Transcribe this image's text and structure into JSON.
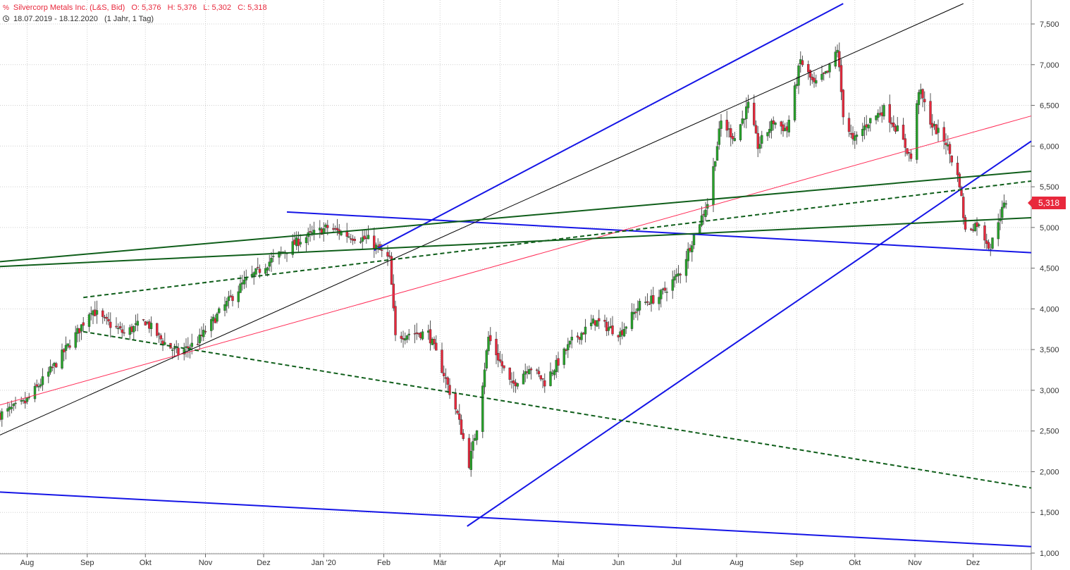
{
  "header": {
    "instrument": "Silvercorp Metals Inc. (L&S, Bid)",
    "open": "O: 5,376",
    "high": "H: 5,376",
    "low": "L: 5,302",
    "close": "C: 5,318",
    "range": "18.07.2019 - 18.12.2020",
    "period": "(1 Jahr, 1 Tag)"
  },
  "last_price_label": "5,318",
  "colors": {
    "up": "#27a32a",
    "down": "#e8283c",
    "blue_line": "#1515e6",
    "green_line": "#0f5e1a",
    "red_line": "#ff2a55",
    "black_line": "#000000",
    "grid": "#cfcfcf"
  },
  "chart_data": {
    "type": "candlestick",
    "x_range": [
      "2019-07-18",
      "2020-12-18"
    ],
    "ylim": [
      1.0,
      7.75
    ],
    "y_ticks": [
      "1,000",
      "1,500",
      "2,000",
      "2,500",
      "3,000",
      "3,500",
      "4,000",
      "4,500",
      "5,000",
      "5,500",
      "6,000",
      "6,500",
      "7,000",
      "7,500"
    ],
    "month_labels": [
      "Aug",
      "Sep",
      "Okt",
      "Nov",
      "Dez",
      "Jan '20",
      "Feb",
      "Mär",
      "Apr",
      "Mai",
      "Jun",
      "Jul",
      "Aug",
      "Sep",
      "Okt",
      "Nov",
      "Dez"
    ],
    "month_starts": [
      "2019-08-01",
      "2019-09-01",
      "2019-10-01",
      "2019-11-01",
      "2019-12-01",
      "2020-01-01",
      "2020-02-01",
      "2020-03-01",
      "2020-04-01",
      "2020-05-01",
      "2020-06-01",
      "2020-07-01",
      "2020-08-01",
      "2020-09-01",
      "2020-10-01",
      "2020-11-01",
      "2020-12-01"
    ],
    "price_path": [
      [
        "2019-07-18",
        2.7
      ],
      [
        "2019-07-31",
        2.85
      ],
      [
        "2019-08-15",
        3.3
      ],
      [
        "2019-08-28",
        3.75
      ],
      [
        "2019-09-03",
        4.0
      ],
      [
        "2019-09-10",
        3.85
      ],
      [
        "2019-09-20",
        3.7
      ],
      [
        "2019-10-01",
        3.85
      ],
      [
        "2019-10-10",
        3.6
      ],
      [
        "2019-10-18",
        3.45
      ],
      [
        "2019-10-28",
        3.6
      ],
      [
        "2019-11-08",
        3.95
      ],
      [
        "2019-11-20",
        4.3
      ],
      [
        "2019-12-05",
        4.6
      ],
      [
        "2019-12-20",
        4.85
      ],
      [
        "2020-01-03",
        5.0
      ],
      [
        "2020-01-14",
        4.9
      ],
      [
        "2020-01-24",
        4.85
      ],
      [
        "2020-02-04",
        4.6
      ],
      [
        "2020-02-07",
        3.65
      ],
      [
        "2020-02-14",
        3.7
      ],
      [
        "2020-02-24",
        3.7
      ],
      [
        "2020-03-03",
        3.2
      ],
      [
        "2020-03-10",
        2.7
      ],
      [
        "2020-03-16",
        2.1
      ],
      [
        "2020-03-20",
        2.55
      ],
      [
        "2020-03-26",
        3.65
      ],
      [
        "2020-04-07",
        3.05
      ],
      [
        "2020-04-16",
        3.3
      ],
      [
        "2020-04-24",
        3.1
      ],
      [
        "2020-05-08",
        3.6
      ],
      [
        "2020-05-20",
        3.85
      ],
      [
        "2020-06-02",
        3.7
      ],
      [
        "2020-06-12",
        4.05
      ],
      [
        "2020-06-22",
        4.15
      ],
      [
        "2020-07-03",
        4.45
      ],
      [
        "2020-07-10",
        4.9
      ],
      [
        "2020-07-17",
        5.3
      ],
      [
        "2020-07-24",
        6.3
      ],
      [
        "2020-07-31",
        6.1
      ],
      [
        "2020-08-07",
        6.5
      ],
      [
        "2020-08-12",
        6.0
      ],
      [
        "2020-08-20",
        6.3
      ],
      [
        "2020-08-27",
        6.2
      ],
      [
        "2020-09-03",
        7.05
      ],
      [
        "2020-09-10",
        6.75
      ],
      [
        "2020-09-17",
        6.9
      ],
      [
        "2020-09-22",
        7.2
      ],
      [
        "2020-09-25",
        6.4
      ],
      [
        "2020-09-30",
        6.05
      ],
      [
        "2020-10-08",
        6.3
      ],
      [
        "2020-10-16",
        6.45
      ],
      [
        "2020-10-23",
        6.2
      ],
      [
        "2020-10-30",
        5.85
      ],
      [
        "2020-11-03",
        6.7
      ],
      [
        "2020-11-10",
        6.25
      ],
      [
        "2020-11-17",
        6.05
      ],
      [
        "2020-11-24",
        5.55
      ],
      [
        "2020-11-27",
        4.95
      ],
      [
        "2020-12-03",
        5.05
      ],
      [
        "2020-12-10",
        4.75
      ],
      [
        "2020-12-14",
        5.1
      ],
      [
        "2020-12-18",
        5.318
      ]
    ],
    "last_close": 5.318,
    "trend_lines": [
      {
        "color": "blue",
        "style": "solid",
        "from": [
          "2020-01-27",
          4.72
        ],
        "to": [
          "2020-09-25",
          7.75
        ]
      },
      {
        "color": "blue",
        "style": "solid",
        "from": [
          "2020-03-15",
          1.33
        ],
        "to": [
          "2020-12-31",
          6.06
        ]
      },
      {
        "color": "blue",
        "style": "solid",
        "from": [
          "2019-12-13",
          5.19
        ],
        "to": [
          "2020-12-31",
          4.69
        ]
      },
      {
        "color": "blue",
        "style": "solid",
        "from": [
          "2019-07-18",
          1.75
        ],
        "to": [
          "2020-12-31",
          1.08
        ]
      },
      {
        "color": "black",
        "style": "solid",
        "from": [
          "2019-07-18",
          2.45
        ],
        "to": [
          "2020-11-26",
          7.75
        ]
      },
      {
        "color": "red",
        "style": "solid",
        "from": [
          "2019-07-18",
          2.82
        ],
        "to": [
          "2020-12-31",
          6.37
        ]
      },
      {
        "color": "green",
        "style": "solid",
        "from": [
          "2019-07-18",
          4.58
        ],
        "to": [
          "2020-12-31",
          5.69
        ]
      },
      {
        "color": "green",
        "style": "solid",
        "from": [
          "2019-07-18",
          4.52
        ],
        "to": [
          "2020-12-31",
          5.12
        ]
      },
      {
        "color": "green",
        "style": "dashed",
        "from": [
          "2019-08-30",
          4.14
        ],
        "to": [
          "2020-12-31",
          5.57
        ]
      },
      {
        "color": "green",
        "style": "dashed",
        "from": [
          "2019-08-30",
          3.72
        ],
        "to": [
          "2020-12-31",
          1.8
        ]
      }
    ]
  }
}
